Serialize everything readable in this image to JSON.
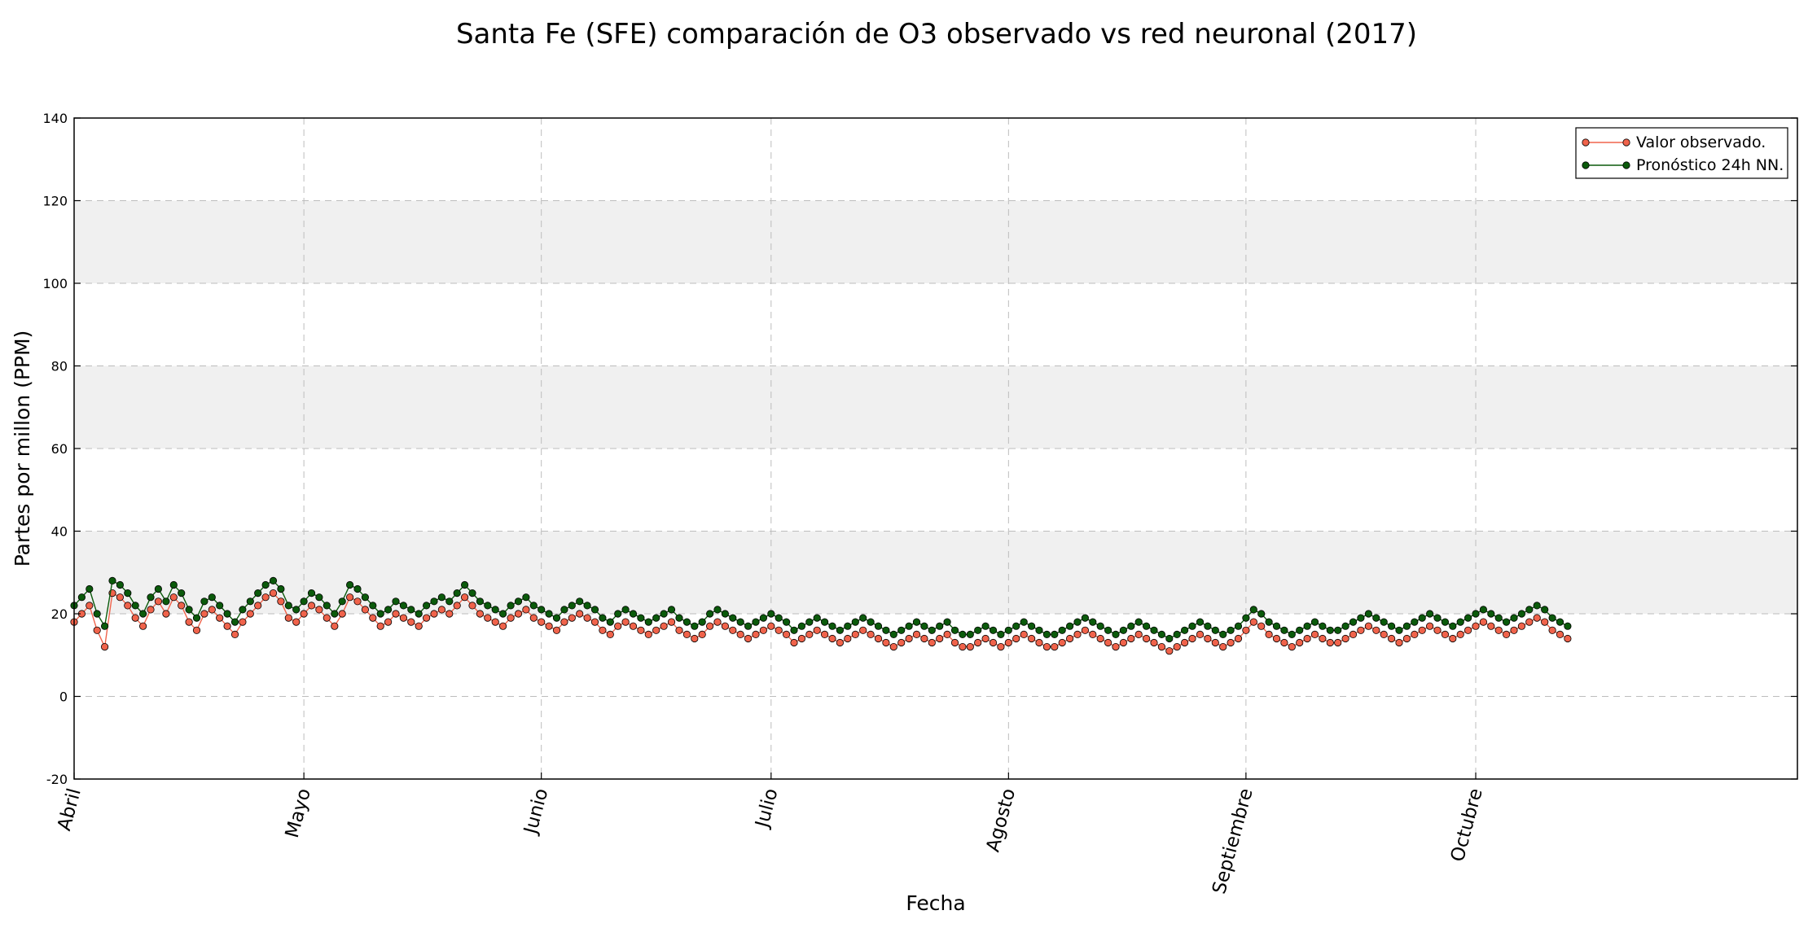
{
  "chart_data": {
    "type": "line",
    "title": "Santa Fe (SFE) comparación de O3 observado vs red neuronal (2017)",
    "xlabel": "Fecha",
    "ylabel": "Partes por millon (PPM)",
    "ylim": [
      -20,
      140
    ],
    "yticks": [
      -20,
      0,
      20,
      40,
      60,
      80,
      100,
      120,
      140
    ],
    "x_ticks": [
      "Abril",
      "Mayo",
      "Junio",
      "Julio",
      "Agosto",
      "Septiembre",
      "Octubre"
    ],
    "grid": true,
    "shaded_bands": [
      [
        20,
        40
      ],
      [
        60,
        80
      ],
      [
        100,
        120
      ]
    ],
    "legend_position": "top-right",
    "series": [
      {
        "name": "Valor observado.",
        "color": "#f0634b",
        "x_start": "2017-04-01 00:00",
        "x_step_hours": 24,
        "values": [
          18,
          20,
          22,
          16,
          12,
          25,
          24,
          22,
          19,
          17,
          21,
          23,
          20,
          24,
          22,
          18,
          16,
          20,
          21,
          19,
          17,
          15,
          18,
          20,
          22,
          24,
          25,
          23,
          19,
          18,
          20,
          22,
          21,
          19,
          17,
          20,
          24,
          23,
          21,
          19,
          17,
          18,
          20,
          19,
          18,
          17,
          19,
          20,
          21,
          20,
          22,
          24,
          22,
          20,
          19,
          18,
          17,
          19,
          20,
          21,
          19,
          18,
          17,
          16,
          18,
          19,
          20,
          19,
          18,
          16,
          15,
          17,
          18,
          17,
          16,
          15,
          16,
          17,
          18,
          16,
          15,
          14,
          15,
          17,
          18,
          17,
          16,
          15,
          14,
          15,
          16,
          17,
          16,
          15,
          13,
          14,
          15,
          16,
          15,
          14,
          13,
          14,
          15,
          16,
          15,
          14,
          13,
          12,
          13,
          14,
          15,
          14,
          13,
          14,
          15,
          13,
          12,
          12,
          13,
          14,
          13,
          12,
          13,
          14,
          15,
          14,
          13,
          12,
          12,
          13,
          14,
          15,
          16,
          15,
          14,
          13,
          12,
          13,
          14,
          15,
          14,
          13,
          12,
          11,
          12,
          13,
          14,
          15,
          14,
          13,
          12,
          13,
          14,
          16,
          18,
          17,
          15,
          14,
          13,
          12,
          13,
          14,
          15,
          14,
          13,
          13,
          14,
          15,
          16,
          17,
          16,
          15,
          14,
          13,
          14,
          15,
          16,
          17,
          16,
          15,
          14,
          15,
          16,
          17,
          18,
          17,
          16,
          15,
          16,
          17,
          18,
          19,
          18,
          16,
          15,
          14
        ]
      },
      {
        "name": "Pronóstico 24h NN.",
        "color": "#0b5a0b",
        "x_start": "2017-04-01 00:00",
        "x_step_hours": 24,
        "values": [
          22,
          24,
          26,
          20,
          17,
          28,
          27,
          25,
          22,
          20,
          24,
          26,
          23,
          27,
          25,
          21,
          19,
          23,
          24,
          22,
          20,
          18,
          21,
          23,
          25,
          27,
          28,
          26,
          22,
          21,
          23,
          25,
          24,
          22,
          20,
          23,
          27,
          26,
          24,
          22,
          20,
          21,
          23,
          22,
          21,
          20,
          22,
          23,
          24,
          23,
          25,
          27,
          25,
          23,
          22,
          21,
          20,
          22,
          23,
          24,
          22,
          21,
          20,
          19,
          21,
          22,
          23,
          22,
          21,
          19,
          18,
          20,
          21,
          20,
          19,
          18,
          19,
          20,
          21,
          19,
          18,
          17,
          18,
          20,
          21,
          20,
          19,
          18,
          17,
          18,
          19,
          20,
          19,
          18,
          16,
          17,
          18,
          19,
          18,
          17,
          16,
          17,
          18,
          19,
          18,
          17,
          16,
          15,
          16,
          17,
          18,
          17,
          16,
          17,
          18,
          16,
          15,
          15,
          16,
          17,
          16,
          15,
          16,
          17,
          18,
          17,
          16,
          15,
          15,
          16,
          17,
          18,
          19,
          18,
          17,
          16,
          15,
          16,
          17,
          18,
          17,
          16,
          15,
          14,
          15,
          16,
          17,
          18,
          17,
          16,
          15,
          16,
          17,
          19,
          21,
          20,
          18,
          17,
          16,
          15,
          16,
          17,
          18,
          17,
          16,
          16,
          17,
          18,
          19,
          20,
          19,
          18,
          17,
          16,
          17,
          18,
          19,
          20,
          19,
          18,
          17,
          18,
          19,
          20,
          21,
          20,
          19,
          18,
          19,
          20,
          21,
          22,
          21,
          19,
          18,
          17
        ]
      }
    ]
  }
}
